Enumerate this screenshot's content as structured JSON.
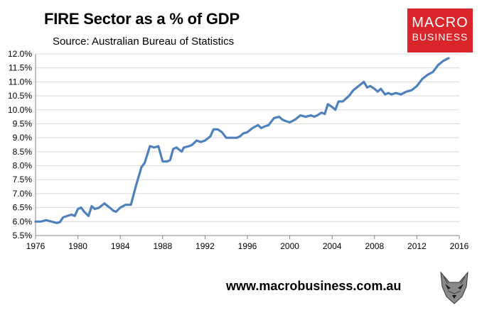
{
  "header": {
    "title": "FIRE Sector as a % of GDP",
    "subtitle": "Source: Australian Bureau of Statistics"
  },
  "logo": {
    "line1": "MACRO",
    "line2": "BUSINESS",
    "color": "#d9262b"
  },
  "footer": {
    "url": "www.macrobusiness.com.au",
    "mascot_icon": "wolf-icon"
  },
  "chart_data": {
    "type": "line",
    "title": "FIRE Sector as a % of GDP",
    "xlabel": "",
    "ylabel": "",
    "xlim": [
      1976,
      2016
    ],
    "ylim": [
      5.5,
      12.0
    ],
    "x_ticks": [
      "1976",
      "1980",
      "1984",
      "1988",
      "1992",
      "1996",
      "2000",
      "2004",
      "2008",
      "2012",
      "2016"
    ],
    "y_ticks": [
      "12.0%",
      "11.5%",
      "11.0%",
      "10.5%",
      "10.0%",
      "9.5%",
      "9.0%",
      "8.5%",
      "8.0%",
      "7.5%",
      "7.0%",
      "6.5%",
      "6.0%",
      "5.5%"
    ],
    "grid": true,
    "series": [
      {
        "name": "FIRE Sector as a % of GDP",
        "color": "#4f81bd",
        "x": [
          1976.0,
          1976.5,
          1977.0,
          1977.5,
          1978.0,
          1978.3,
          1978.6,
          1979.0,
          1979.4,
          1979.7,
          1980.0,
          1980.3,
          1980.6,
          1981.0,
          1981.3,
          1981.6,
          1982.0,
          1982.5,
          1983.0,
          1983.3,
          1983.6,
          1984.0,
          1984.5,
          1985.0,
          1985.5,
          1986.0,
          1986.3,
          1986.8,
          1987.2,
          1987.6,
          1988.0,
          1988.4,
          1988.7,
          1989.0,
          1989.3,
          1989.8,
          1990.0,
          1990.5,
          1990.8,
          1991.2,
          1991.6,
          1992.0,
          1992.5,
          1992.8,
          1993.2,
          1993.6,
          1994.0,
          1994.5,
          1995.0,
          1995.3,
          1995.6,
          1996.0,
          1996.5,
          1997.0,
          1997.3,
          1997.6,
          1998.0,
          1998.5,
          1999.0,
          1999.3,
          1999.6,
          2000.0,
          2000.5,
          2001.0,
          2001.5,
          2002.0,
          2002.3,
          2002.6,
          2003.0,
          2003.3,
          2003.6,
          2004.0,
          2004.3,
          2004.6,
          2005.0,
          2005.3,
          2005.6,
          2006.0,
          2006.5,
          2007.0,
          2007.3,
          2007.6,
          2008.0,
          2008.3,
          2008.6,
          2009.0,
          2009.3,
          2009.6,
          2010.0,
          2010.5,
          2011.0,
          2011.5,
          2012.0,
          2012.5,
          2013.0,
          2013.5,
          2014.0,
          2014.5,
          2015.0
        ],
        "values": [
          6.0,
          6.0,
          6.05,
          6.0,
          5.95,
          5.98,
          6.15,
          6.2,
          6.25,
          6.2,
          6.45,
          6.5,
          6.35,
          6.2,
          6.55,
          6.45,
          6.5,
          6.65,
          6.5,
          6.4,
          6.35,
          6.5,
          6.6,
          6.6,
          7.3,
          7.95,
          8.1,
          8.7,
          8.65,
          8.7,
          8.15,
          8.15,
          8.2,
          8.6,
          8.65,
          8.5,
          8.65,
          8.7,
          8.75,
          8.9,
          8.85,
          8.9,
          9.05,
          9.3,
          9.3,
          9.2,
          9.0,
          9.0,
          9.0,
          9.05,
          9.15,
          9.2,
          9.35,
          9.45,
          9.35,
          9.4,
          9.45,
          9.7,
          9.75,
          9.65,
          9.6,
          9.55,
          9.65,
          9.8,
          9.75,
          9.8,
          9.75,
          9.8,
          9.9,
          9.85,
          10.2,
          10.1,
          10.0,
          10.3,
          10.3,
          10.4,
          10.5,
          10.7,
          10.85,
          11.0,
          10.8,
          10.85,
          10.75,
          10.65,
          10.75,
          10.55,
          10.6,
          10.55,
          10.6,
          10.55,
          10.65,
          10.7,
          10.85,
          11.1,
          11.25,
          11.35,
          11.6,
          11.75,
          11.85
        ]
      }
    ]
  }
}
